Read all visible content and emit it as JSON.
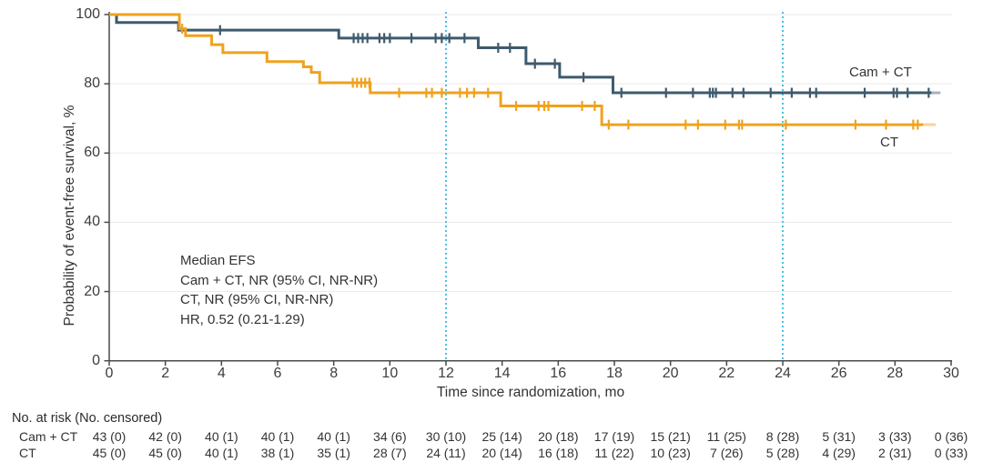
{
  "colors": {
    "cam_ct_line": "#3e5a6d",
    "ct_line": "#efa21e",
    "reference_line": "#4bbfe9",
    "grid_line": "#eaeaea",
    "axis": "#4a4a4a",
    "text": "#333333"
  },
  "chart": {
    "annotation": {
      "lines": [
        "Median EFS",
        "Cam + CT, NR (95% CI, NR-NR)",
        "CT, NR (95% CI, NR-NR)",
        "HR, 0.52 (0.21-1.29)"
      ]
    }
  },
  "chart_data": {
    "type": "line",
    "subtype": "kaplan-meier-step",
    "title": "",
    "xlabel": "Time since randomization, mo",
    "ylabel": "Probability of event-free survival, %",
    "xlim": [
      0,
      30
    ],
    "ylim": [
      0,
      100
    ],
    "x_ticks": [
      0,
      2,
      4,
      6,
      8,
      10,
      12,
      14,
      16,
      18,
      20,
      22,
      24,
      26,
      28,
      30
    ],
    "y_ticks": [
      0,
      20,
      40,
      60,
      80,
      100
    ],
    "grid": "horizontal-light",
    "legend_position": "end-of-line-labels",
    "reference_lines_x": [
      12,
      24
    ],
    "series": [
      {
        "name": "Cam + CT",
        "color": "#3e5a6d",
        "steps": [
          [
            0,
            100
          ],
          [
            0.26,
            97.7
          ],
          [
            2.47,
            95.5
          ],
          [
            8.18,
            93.2
          ],
          [
            13.15,
            90.4
          ],
          [
            14.85,
            85.8
          ],
          [
            16.05,
            81.9
          ],
          [
            17.95,
            77.4
          ]
        ],
        "end": 29.3,
        "tail_end": 29.62,
        "censor_marks": [
          3.95,
          8.71,
          8.87,
          9.03,
          9.2,
          9.63,
          9.8,
          10.0,
          10.77,
          11.63,
          11.85,
          12.12,
          12.66,
          13.86,
          14.28,
          15.17,
          15.88,
          16.9,
          18.25,
          19.84,
          20.8,
          21.4,
          21.51,
          21.62,
          22.21,
          22.6,
          23.57,
          24.32,
          24.97,
          25.19,
          26.92,
          27.95,
          28.07,
          28.45,
          29.2
        ]
      },
      {
        "name": "CT",
        "color": "#efa21e",
        "steps": [
          [
            0,
            100
          ],
          [
            2.5,
            95.9
          ],
          [
            2.72,
            93.9
          ],
          [
            3.65,
            91.3
          ],
          [
            4.05,
            89.0
          ],
          [
            5.62,
            86.4
          ],
          [
            6.92,
            84.9
          ],
          [
            7.2,
            83.3
          ],
          [
            7.5,
            80.3
          ],
          [
            9.3,
            77.4
          ],
          [
            13.95,
            73.6
          ],
          [
            17.55,
            68.2
          ]
        ],
        "end": 29.0,
        "tail_end": 29.45,
        "censor_marks": [
          2.6,
          8.68,
          8.83,
          8.98,
          9.12,
          9.27,
          10.33,
          11.3,
          11.5,
          11.85,
          12.5,
          12.75,
          13.0,
          13.5,
          14.5,
          15.3,
          15.5,
          15.65,
          16.85,
          17.3,
          17.8,
          18.5,
          20.54,
          20.98,
          21.95,
          22.44,
          22.55,
          24.11,
          26.59,
          27.68,
          28.65,
          28.81
        ]
      }
    ]
  },
  "risk_table": {
    "header": "No. at risk (No. censored)",
    "time_points": [
      0,
      2,
      4,
      6,
      8,
      10,
      12,
      14,
      16,
      18,
      20,
      22,
      24,
      26,
      28,
      30
    ],
    "rows": [
      {
        "label": "Cam + CT",
        "values": [
          "43 (0)",
          "42 (0)",
          "40 (1)",
          "40 (1)",
          "40 (1)",
          "34 (6)",
          "30 (10)",
          "25 (14)",
          "20 (18)",
          "17 (19)",
          "15 (21)",
          "11 (25)",
          "8 (28)",
          "5 (31)",
          "3 (33)",
          "0 (36)"
        ]
      },
      {
        "label": "CT",
        "values": [
          "45 (0)",
          "45 (0)",
          "40 (1)",
          "38 (1)",
          "35 (1)",
          "28 (7)",
          "24 (11)",
          "20 (14)",
          "16 (18)",
          "11 (22)",
          "10 (23)",
          "7 (26)",
          "5 (28)",
          "4 (29)",
          "2 (31)",
          "0 (33)"
        ]
      }
    ]
  }
}
